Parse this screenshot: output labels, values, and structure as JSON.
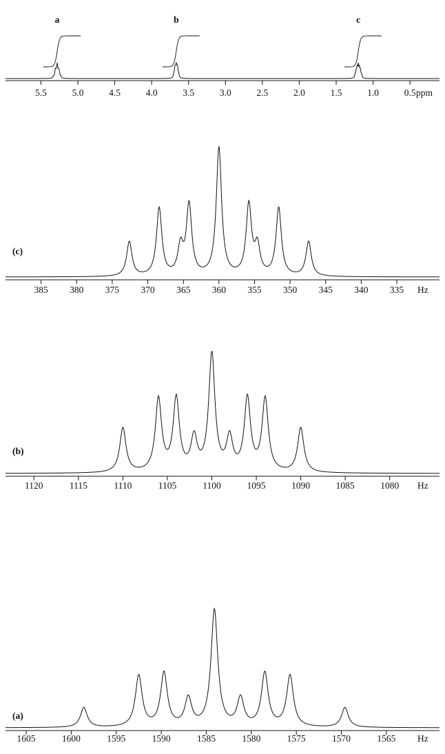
{
  "meta": {
    "background_color": "#ffffff",
    "ink_color": "#111111"
  },
  "chart_data": [
    {
      "id": "full_spectrum",
      "type": "line",
      "xlabel": "ppm",
      "x_axis_reversed": true,
      "x_range": [
        5.98,
        0.1
      ],
      "grid": false,
      "linewidth": 0.0075,
      "ticks": [
        {
          "v": 5.5,
          "label": "5.5"
        },
        {
          "v": 5.0,
          "label": "5.0"
        },
        {
          "v": 4.5,
          "label": "4.5"
        },
        {
          "v": 4.0,
          "label": "4.0"
        },
        {
          "v": 3.5,
          "label": "3.5"
        },
        {
          "v": 3.0,
          "label": "3.0"
        },
        {
          "v": 2.5,
          "label": "2.5"
        },
        {
          "v": 2.0,
          "label": "2.0"
        },
        {
          "v": 1.5,
          "label": "1.5"
        },
        {
          "v": 1.0,
          "label": "1.0"
        },
        {
          "v": 0.5,
          "label": "0.5"
        }
      ],
      "peak_groups": [
        {
          "label": "a",
          "center": 5.28,
          "integral": true,
          "peaks": [
            [
              5.329,
              0.17
            ],
            [
              5.308,
              0.44
            ],
            [
              5.299,
              0.46
            ],
            [
              5.29,
              0.24
            ],
            [
              5.28,
              1.0
            ],
            [
              5.271,
              0.24
            ],
            [
              5.262,
              0.46
            ],
            [
              5.252,
              0.44
            ],
            [
              5.232,
              0.17
            ]
          ]
        },
        {
          "label": "b",
          "center": 3.667,
          "integral": true,
          "peaks": [
            [
              3.7,
              0.38
            ],
            [
              3.687,
              0.62
            ],
            [
              3.68,
              0.62
            ],
            [
              3.673,
              0.28
            ],
            [
              3.667,
              1.0
            ],
            [
              3.66,
              0.28
            ],
            [
              3.653,
              0.62
            ],
            [
              3.647,
              0.62
            ],
            [
              3.633,
              0.38
            ]
          ]
        },
        {
          "label": "c",
          "center": 1.2,
          "integral": true,
          "peaks": [
            [
              1.242,
              0.27
            ],
            [
              1.228,
              0.53
            ],
            [
              1.218,
              0.22
            ],
            [
              1.214,
              0.55
            ],
            [
              1.2,
              1.0
            ],
            [
              1.186,
              0.55
            ],
            [
              1.182,
              0.22
            ],
            [
              1.172,
              0.53
            ],
            [
              1.158,
              0.27
            ]
          ]
        }
      ]
    },
    {
      "id": "expansion_c",
      "type": "line",
      "corner_label": "(c)",
      "xlabel": "Hz",
      "x_axis_reversed": true,
      "x_range": [
        390,
        329
      ],
      "grid": false,
      "linewidth": 0.45,
      "ticks": [
        {
          "v": 385,
          "label": "385"
        },
        {
          "v": 380,
          "label": "380"
        },
        {
          "v": 375,
          "label": "375"
        },
        {
          "v": 370,
          "label": "370"
        },
        {
          "v": 365,
          "label": "365"
        },
        {
          "v": 360,
          "label": "360"
        },
        {
          "v": 355,
          "label": "355"
        },
        {
          "v": 350,
          "label": "350"
        },
        {
          "v": 345,
          "label": "345"
        },
        {
          "v": 340,
          "label": "340"
        },
        {
          "v": 335,
          "label": "335"
        }
      ],
      "peaks": [
        [
          372.6,
          0.27
        ],
        [
          368.4,
          0.53
        ],
        [
          365.4,
          0.22
        ],
        [
          364.2,
          0.55
        ],
        [
          360.0,
          1.0
        ],
        [
          355.8,
          0.55
        ],
        [
          354.6,
          0.22
        ],
        [
          351.6,
          0.53
        ],
        [
          347.4,
          0.27
        ]
      ]
    },
    {
      "id": "expansion_b",
      "type": "line",
      "corner_label": "(b)",
      "xlabel": "Hz",
      "x_axis_reversed": true,
      "x_range": [
        1123.2,
        1074.4
      ],
      "grid": false,
      "linewidth": 0.42,
      "ticks": [
        {
          "v": 1120,
          "label": "1120"
        },
        {
          "v": 1115,
          "label": "1115"
        },
        {
          "v": 1110,
          "label": "1110"
        },
        {
          "v": 1105,
          "label": "1105"
        },
        {
          "v": 1100,
          "label": "1100"
        },
        {
          "v": 1095,
          "label": "1095"
        },
        {
          "v": 1090,
          "label": "1090"
        },
        {
          "v": 1085,
          "label": "1085"
        },
        {
          "v": 1080,
          "label": "1080"
        }
      ],
      "peaks": [
        [
          1110.0,
          0.38
        ],
        [
          1106.0,
          0.62
        ],
        [
          1104.0,
          0.62
        ],
        [
          1102.0,
          0.28
        ],
        [
          1100.0,
          1.0
        ],
        [
          1098.0,
          0.28
        ],
        [
          1096.0,
          0.62
        ],
        [
          1094.0,
          0.62
        ],
        [
          1090.0,
          0.38
        ]
      ]
    },
    {
      "id": "expansion_a",
      "type": "line",
      "corner_label": "(a)",
      "xlabel": "Hz",
      "x_axis_reversed": true,
      "x_range": [
        1607.3,
        1559.1
      ],
      "grid": false,
      "linewidth": 0.45,
      "ticks": [
        {
          "v": 1605,
          "label": "1605"
        },
        {
          "v": 1600,
          "label": "1600"
        },
        {
          "v": 1595,
          "label": "1595"
        },
        {
          "v": 1590,
          "label": "1590"
        },
        {
          "v": 1585,
          "label": "1585"
        },
        {
          "v": 1580,
          "label": "1580"
        },
        {
          "v": 1575,
          "label": "1575"
        },
        {
          "v": 1570,
          "label": "1570"
        },
        {
          "v": 1565,
          "label": "1565"
        }
      ],
      "peaks": [
        [
          1598.6,
          0.17
        ],
        [
          1592.5,
          0.44
        ],
        [
          1589.7,
          0.46
        ],
        [
          1587.0,
          0.24
        ],
        [
          1584.1,
          1.0
        ],
        [
          1581.2,
          0.24
        ],
        [
          1578.5,
          0.46
        ],
        [
          1575.7,
          0.44
        ],
        [
          1569.6,
          0.17
        ]
      ]
    }
  ]
}
